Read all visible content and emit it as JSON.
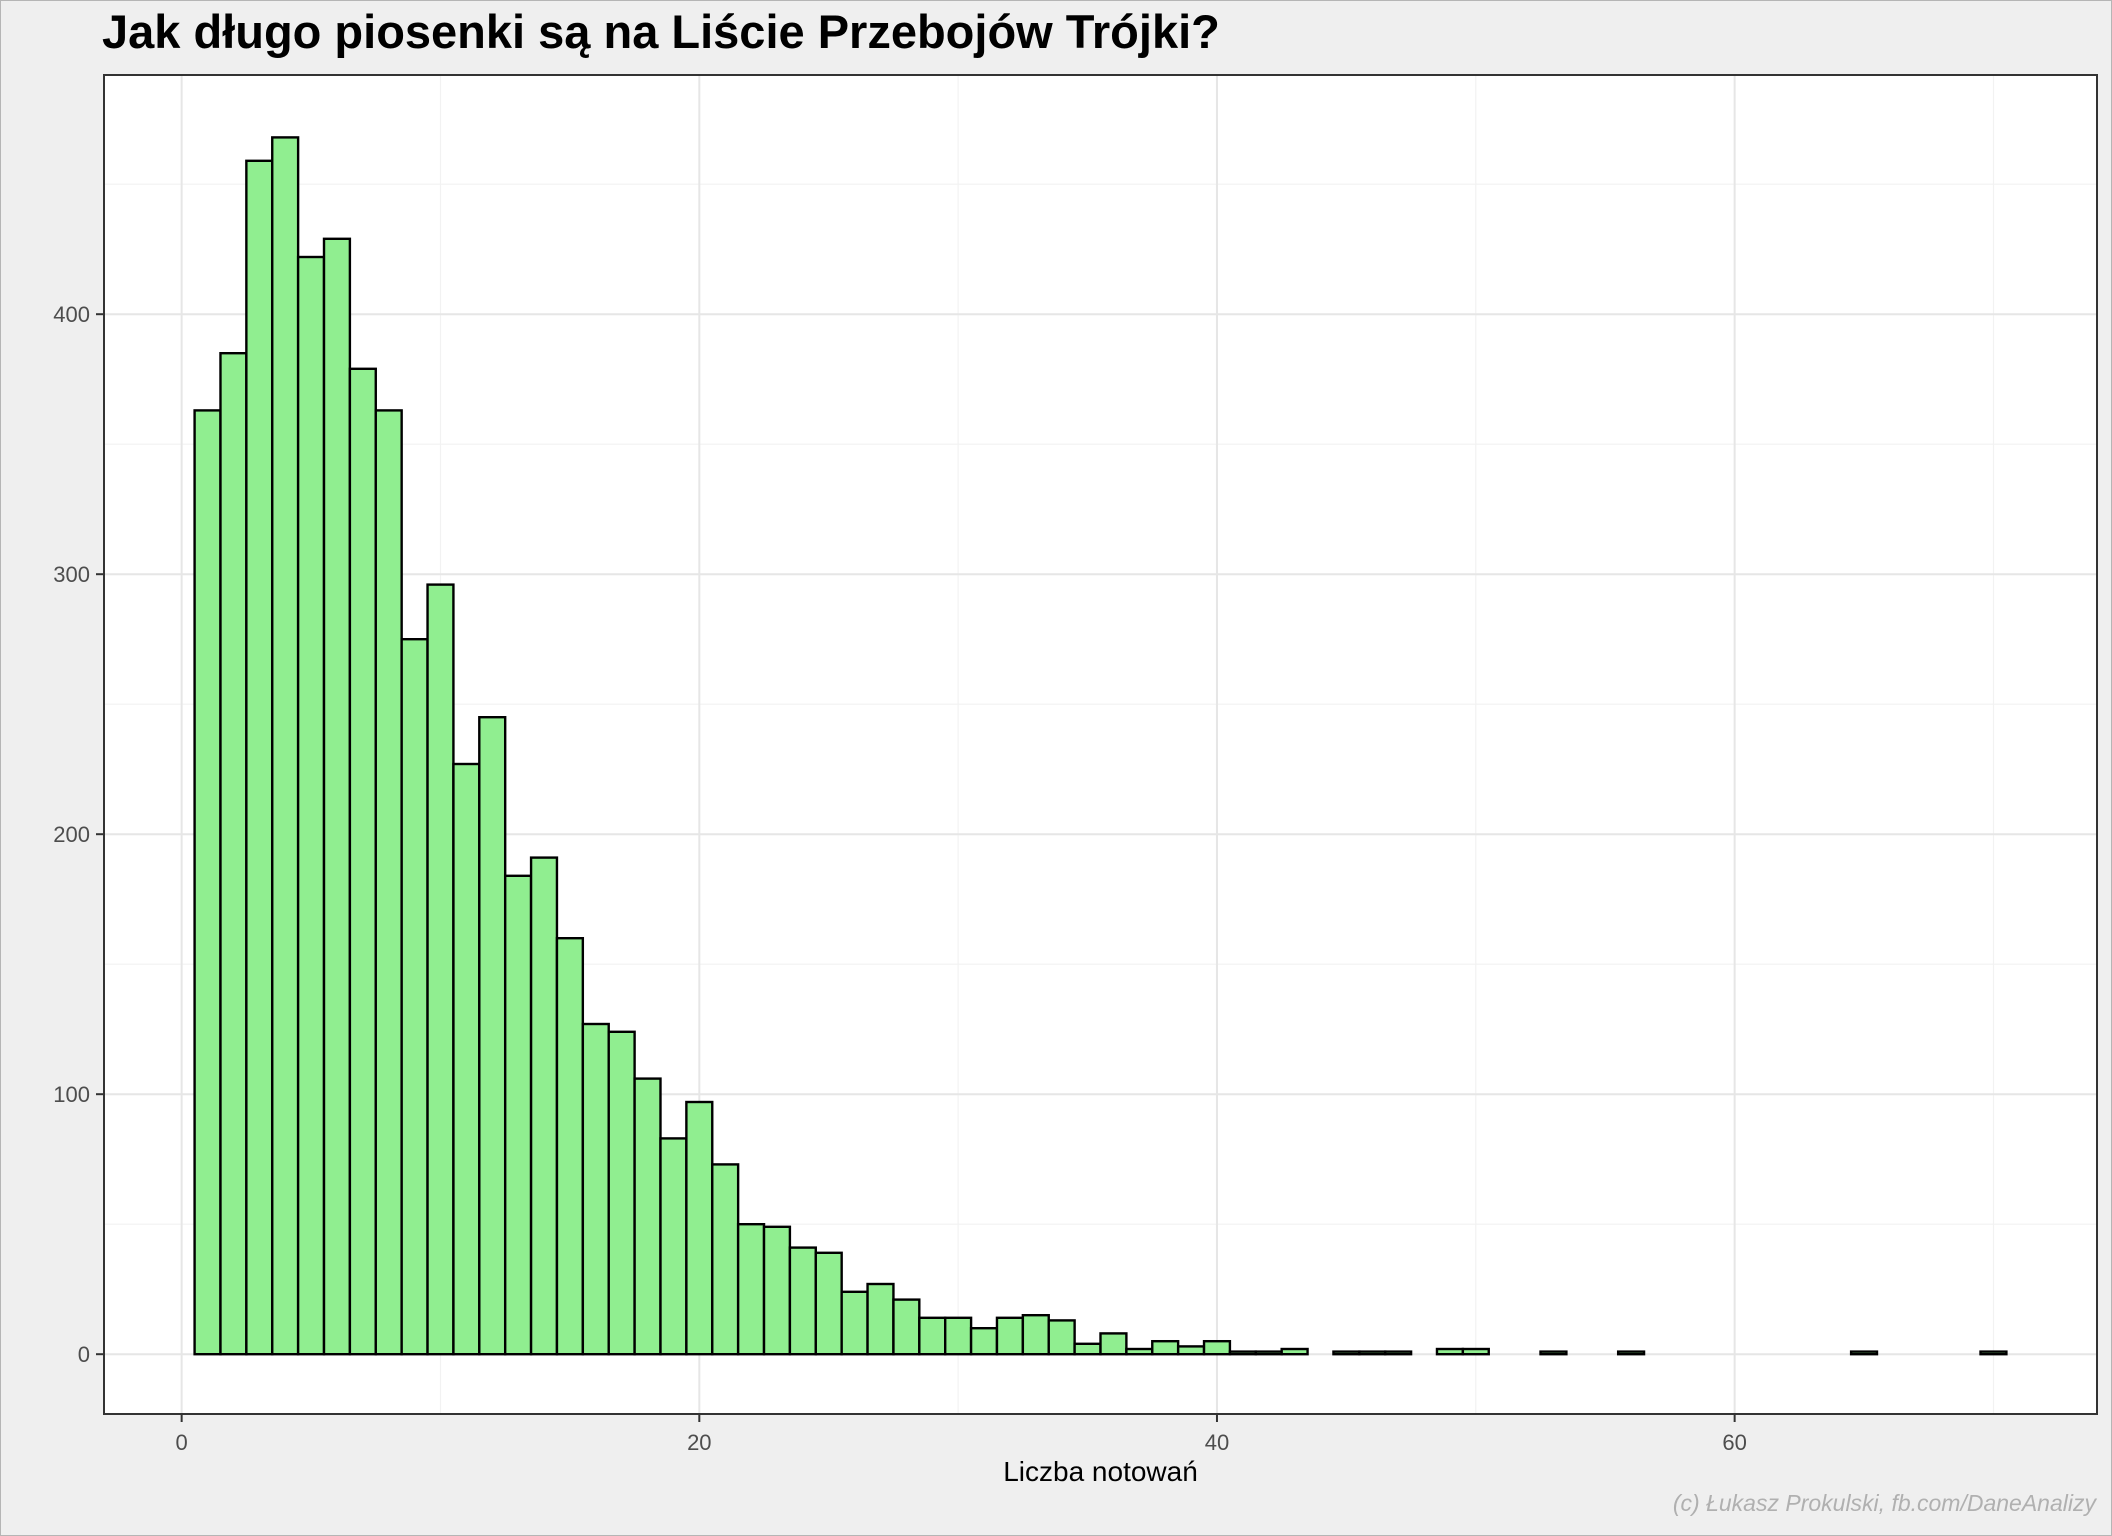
{
  "chart_data": {
    "type": "bar",
    "title": "Jak długo piosenki są na Liście Przebojów Trójki?",
    "xlabel": "Liczba notowań",
    "ylabel": "",
    "caption": "(c) Łukasz Prokulski, fb.com/DaneAnalizy",
    "x_ticks": [
      "0",
      "20",
      "40",
      "60"
    ],
    "y_ticks": [
      "0",
      "100",
      "200",
      "300",
      "400"
    ],
    "xlim": [
      -3,
      74
    ],
    "ylim": [
      -23,
      492
    ],
    "grid": true,
    "bin_width": 1,
    "bar_color": "#90ee90",
    "bar_outline": "#000000",
    "x": [
      1,
      2,
      3,
      4,
      5,
      6,
      7,
      8,
      9,
      10,
      11,
      12,
      13,
      14,
      15,
      16,
      17,
      18,
      19,
      20,
      21,
      22,
      23,
      24,
      25,
      26,
      27,
      28,
      29,
      30,
      31,
      32,
      33,
      34,
      35,
      36,
      37,
      38,
      39,
      40,
      41,
      42,
      43,
      44,
      45,
      46,
      47,
      48,
      49,
      50,
      51,
      52,
      53,
      54,
      55,
      56,
      57,
      58,
      59,
      60,
      61,
      62,
      63,
      64,
      65,
      66,
      67,
      68,
      69,
      70
    ],
    "values": [
      363,
      385,
      459,
      468,
      422,
      429,
      379,
      363,
      275,
      296,
      227,
      245,
      184,
      191,
      160,
      127,
      124,
      106,
      83,
      97,
      73,
      50,
      49,
      41,
      39,
      24,
      27,
      21,
      14,
      14,
      10,
      14,
      15,
      13,
      4,
      8,
      2,
      5,
      3,
      5,
      1,
      1,
      2,
      0,
      1,
      1,
      1,
      0,
      2,
      2,
      0,
      0,
      1,
      0,
      0,
      1,
      0,
      0,
      0,
      0,
      0,
      0,
      0,
      0,
      1,
      0,
      0,
      0,
      0,
      1
    ]
  }
}
